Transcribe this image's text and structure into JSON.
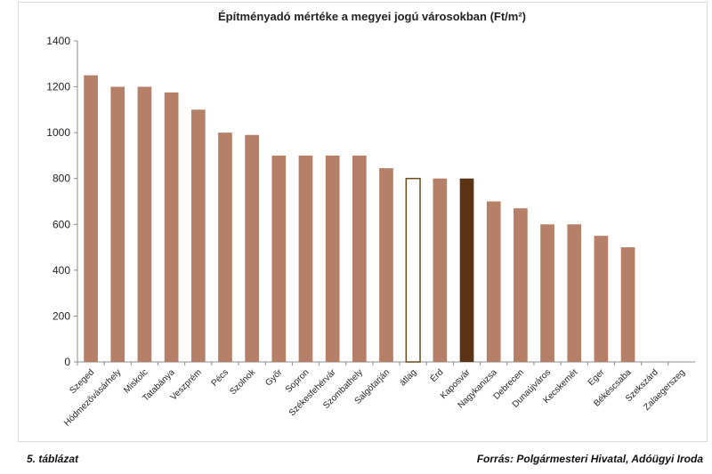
{
  "chart_data": {
    "type": "bar",
    "title": "Építményadó mértéke a megyei jogú városokban (Ft/m²)",
    "xlabel": "",
    "ylabel": "",
    "ylim": [
      0,
      1400
    ],
    "yticks": [
      0,
      200,
      400,
      600,
      800,
      1000,
      1200,
      1400
    ],
    "grid": false,
    "categories": [
      "Szeged",
      "Hódmezővásárhely",
      "Miskolc",
      "Tatabánya",
      "Veszprém",
      "Pécs",
      "Szolnok",
      "Győr",
      "Sopron",
      "Székesfehérvár",
      "Szombathely",
      "Salgótarján",
      "átlag",
      "Érd",
      "Kaposvár",
      "Nagykanizsa",
      "Debrecen",
      "Dunaújváros",
      "Kecskemét",
      "Eger",
      "Békéscsaba",
      "Szekszárd",
      "Zalaegerszeg"
    ],
    "values": [
      1250,
      1200,
      1200,
      1175,
      1100,
      1000,
      990,
      900,
      900,
      900,
      900,
      845,
      800,
      800,
      800,
      700,
      670,
      600,
      600,
      550,
      500,
      0,
      0
    ],
    "bar_styles": [
      "normal",
      "normal",
      "normal",
      "normal",
      "normal",
      "normal",
      "normal",
      "normal",
      "normal",
      "normal",
      "normal",
      "normal",
      "outline",
      "normal",
      "highlight",
      "normal",
      "normal",
      "normal",
      "normal",
      "normal",
      "normal",
      "normal",
      "normal"
    ],
    "colors": {
      "bar": "#b57f68",
      "highlight": "#5b3415",
      "outline_stroke": "#6b4a1e",
      "outline_fill": "#ffffff",
      "axis": "#8c8c8c",
      "text": "#222222"
    }
  },
  "footer": {
    "table_label": "5. táblázat",
    "source": "Forrás: Polgármesteri Hivatal, Adóügyi Iroda"
  }
}
